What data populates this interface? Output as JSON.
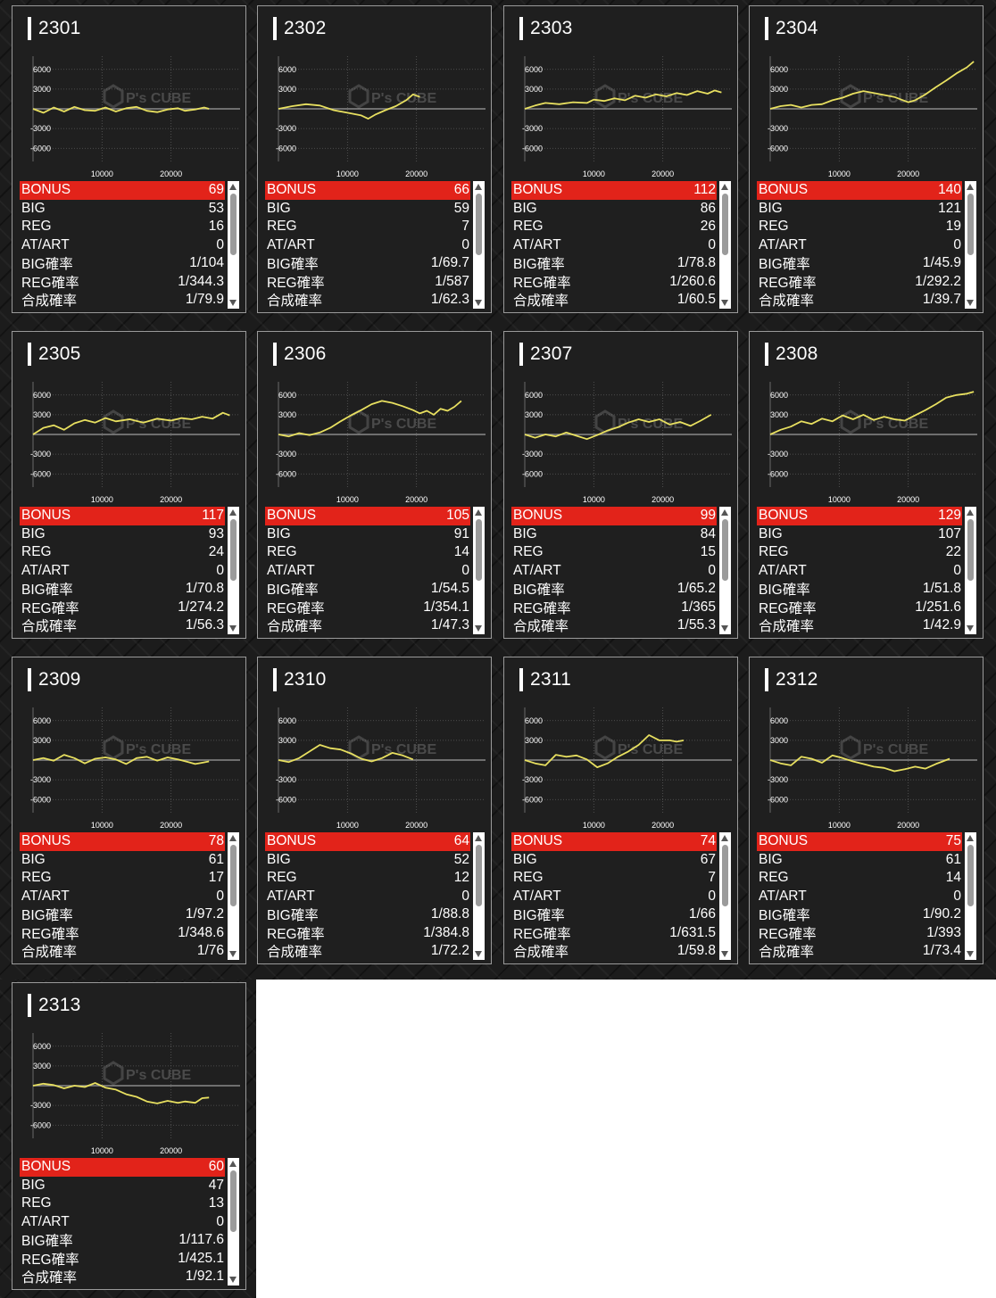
{
  "row_labels": [
    "BONUS",
    "BIG",
    "REG",
    "AT/ART",
    "BIG確率",
    "REG確率",
    "合成確率"
  ],
  "y_ticks": [
    "6000",
    "3000",
    "-3000",
    "-6000"
  ],
  "x_ticks": [
    "10000",
    "20000"
  ],
  "watermark": "P's CUBE",
  "colors": {
    "line": "#e8e060",
    "bonus_bg": "#e2231a",
    "panel_bg": "#1f1f1f"
  },
  "machines": [
    {
      "no": "2301",
      "stats": [
        "69",
        "53",
        "16",
        "0",
        "1/104",
        "1/344.3",
        "1/79.9"
      ],
      "series": [
        [
          0,
          0
        ],
        [
          1500,
          -600
        ],
        [
          3000,
          200
        ],
        [
          4500,
          -400
        ],
        [
          6000,
          300
        ],
        [
          7500,
          -200
        ],
        [
          9000,
          -300
        ],
        [
          10500,
          200
        ],
        [
          12000,
          -400
        ],
        [
          13500,
          100
        ],
        [
          15000,
          300
        ],
        [
          16500,
          -300
        ],
        [
          18000,
          -500
        ],
        [
          19500,
          -100
        ],
        [
          21000,
          100
        ],
        [
          22000,
          -300
        ],
        [
          23500,
          -100
        ],
        [
          24800,
          200
        ],
        [
          25500,
          0
        ]
      ]
    },
    {
      "no": "2302",
      "stats": [
        "66",
        "59",
        "7",
        "0",
        "1/69.7",
        "1/587",
        "1/62.3"
      ],
      "series": [
        [
          0,
          0
        ],
        [
          2000,
          400
        ],
        [
          4000,
          700
        ],
        [
          6000,
          500
        ],
        [
          8000,
          -200
        ],
        [
          10000,
          -600
        ],
        [
          12000,
          -1000
        ],
        [
          13000,
          -1500
        ],
        [
          14000,
          -900
        ],
        [
          15500,
          -200
        ],
        [
          17000,
          400
        ],
        [
          18500,
          1300
        ],
        [
          19500,
          2200
        ],
        [
          20500,
          1800
        ]
      ]
    },
    {
      "no": "2303",
      "stats": [
        "112",
        "86",
        "26",
        "0",
        "1/78.8",
        "1/260.6",
        "1/60.5"
      ],
      "series": [
        [
          0,
          0
        ],
        [
          1500,
          500
        ],
        [
          3000,
          900
        ],
        [
          5000,
          700
        ],
        [
          7000,
          1000
        ],
        [
          9000,
          900
        ],
        [
          10000,
          1400
        ],
        [
          11500,
          1200
        ],
        [
          13000,
          1600
        ],
        [
          14500,
          1300
        ],
        [
          16000,
          2000
        ],
        [
          17500,
          1700
        ],
        [
          19000,
          2200
        ],
        [
          20500,
          1900
        ],
        [
          22000,
          2400
        ],
        [
          23500,
          2100
        ],
        [
          25000,
          2700
        ],
        [
          26500,
          2300
        ],
        [
          27500,
          2800
        ],
        [
          28500,
          2500
        ]
      ]
    },
    {
      "no": "2304",
      "stats": [
        "140",
        "121",
        "19",
        "0",
        "1/45.9",
        "1/292.2",
        "1/39.7"
      ],
      "series": [
        [
          0,
          0
        ],
        [
          1500,
          400
        ],
        [
          3000,
          600
        ],
        [
          4500,
          200
        ],
        [
          6000,
          600
        ],
        [
          7500,
          700
        ],
        [
          9000,
          1300
        ],
        [
          10500,
          1700
        ],
        [
          12000,
          2300
        ],
        [
          13500,
          2700
        ],
        [
          15000,
          2400
        ],
        [
          16500,
          2100
        ],
        [
          18000,
          1800
        ],
        [
          19000,
          1400
        ],
        [
          20000,
          1000
        ],
        [
          21000,
          1300
        ],
        [
          22500,
          2200
        ],
        [
          24000,
          3300
        ],
        [
          25500,
          4300
        ],
        [
          27000,
          5400
        ],
        [
          28500,
          6300
        ],
        [
          29500,
          7200
        ]
      ]
    },
    {
      "no": "2305",
      "stats": [
        "117",
        "93",
        "24",
        "0",
        "1/70.8",
        "1/274.2",
        "1/56.3"
      ],
      "series": [
        [
          0,
          0
        ],
        [
          1500,
          1000
        ],
        [
          3000,
          1400
        ],
        [
          4500,
          700
        ],
        [
          6000,
          1700
        ],
        [
          7500,
          2200
        ],
        [
          9000,
          1800
        ],
        [
          10500,
          2500
        ],
        [
          12000,
          2000
        ],
        [
          14000,
          2300
        ],
        [
          16000,
          1800
        ],
        [
          18000,
          2400
        ],
        [
          20000,
          2100
        ],
        [
          21500,
          2500
        ],
        [
          23000,
          2300
        ],
        [
          24500,
          2700
        ],
        [
          26000,
          2400
        ],
        [
          27500,
          3300
        ],
        [
          28500,
          2900
        ]
      ]
    },
    {
      "no": "2306",
      "stats": [
        "105",
        "91",
        "14",
        "0",
        "1/54.5",
        "1/354.1",
        "1/47.3"
      ],
      "series": [
        [
          0,
          0
        ],
        [
          1500,
          -300
        ],
        [
          3000,
          200
        ],
        [
          4500,
          -100
        ],
        [
          6000,
          300
        ],
        [
          7500,
          1000
        ],
        [
          9000,
          2000
        ],
        [
          10500,
          2900
        ],
        [
          12000,
          3700
        ],
        [
          13500,
          4600
        ],
        [
          15000,
          5100
        ],
        [
          16500,
          4800
        ],
        [
          18000,
          4300
        ],
        [
          19500,
          3700
        ],
        [
          20500,
          3200
        ],
        [
          21500,
          3600
        ],
        [
          22500,
          3000
        ],
        [
          23500,
          3900
        ],
        [
          24500,
          3600
        ],
        [
          25500,
          4200
        ],
        [
          26500,
          5100
        ]
      ]
    },
    {
      "no": "2307",
      "stats": [
        "99",
        "84",
        "15",
        "0",
        "1/65.2",
        "1/365",
        "1/55.3"
      ],
      "series": [
        [
          0,
          0
        ],
        [
          1500,
          -500
        ],
        [
          3000,
          0
        ],
        [
          4500,
          -300
        ],
        [
          6000,
          300
        ],
        [
          7500,
          -200
        ],
        [
          9000,
          -700
        ],
        [
          10500,
          -100
        ],
        [
          12000,
          600
        ],
        [
          13500,
          1100
        ],
        [
          15000,
          1800
        ],
        [
          16500,
          2300
        ],
        [
          18000,
          1900
        ],
        [
          19500,
          2300
        ],
        [
          21000,
          1500
        ],
        [
          22500,
          1900
        ],
        [
          24000,
          1300
        ],
        [
          25500,
          2100
        ],
        [
          27000,
          3000
        ]
      ]
    },
    {
      "no": "2308",
      "stats": [
        "129",
        "107",
        "22",
        "0",
        "1/51.8",
        "1/251.6",
        "1/42.9"
      ],
      "series": [
        [
          0,
          0
        ],
        [
          1500,
          700
        ],
        [
          3000,
          1200
        ],
        [
          4500,
          2000
        ],
        [
          6000,
          1600
        ],
        [
          7500,
          2400
        ],
        [
          9000,
          2000
        ],
        [
          10500,
          2900
        ],
        [
          12000,
          2300
        ],
        [
          13500,
          3000
        ],
        [
          15000,
          2200
        ],
        [
          16500,
          2700
        ],
        [
          18000,
          2300
        ],
        [
          19500,
          2100
        ],
        [
          21000,
          2900
        ],
        [
          22500,
          3700
        ],
        [
          24000,
          4600
        ],
        [
          25500,
          5600
        ],
        [
          27000,
          6000
        ],
        [
          28500,
          6200
        ],
        [
          29500,
          6500
        ]
      ]
    },
    {
      "no": "2309",
      "stats": [
        "78",
        "61",
        "17",
        "0",
        "1/97.2",
        "1/348.6",
        "1/76"
      ],
      "series": [
        [
          0,
          0
        ],
        [
          1500,
          300
        ],
        [
          3000,
          -100
        ],
        [
          4500,
          800
        ],
        [
          6000,
          300
        ],
        [
          7500,
          -500
        ],
        [
          9000,
          200
        ],
        [
          10500,
          400
        ],
        [
          12000,
          100
        ],
        [
          13500,
          -600
        ],
        [
          15000,
          300
        ],
        [
          16500,
          500
        ],
        [
          18000,
          -100
        ],
        [
          19500,
          400
        ],
        [
          21000,
          100
        ],
        [
          22500,
          -300
        ],
        [
          23500,
          -600
        ],
        [
          24500,
          -400
        ],
        [
          25500,
          -200
        ]
      ]
    },
    {
      "no": "2310",
      "stats": [
        "64",
        "52",
        "12",
        "0",
        "1/88.8",
        "1/384.8",
        "1/72.2"
      ],
      "series": [
        [
          0,
          0
        ],
        [
          1500,
          -300
        ],
        [
          3000,
          300
        ],
        [
          4500,
          1300
        ],
        [
          6000,
          2300
        ],
        [
          7500,
          1800
        ],
        [
          9000,
          1600
        ],
        [
          10500,
          1000
        ],
        [
          12000,
          200
        ],
        [
          13500,
          -200
        ],
        [
          15000,
          300
        ],
        [
          16500,
          1100
        ],
        [
          18000,
          700
        ],
        [
          19500,
          100
        ]
      ]
    },
    {
      "no": "2311",
      "stats": [
        "74",
        "67",
        "7",
        "0",
        "1/66",
        "1/631.5",
        "1/59.8"
      ],
      "series": [
        [
          0,
          0
        ],
        [
          1500,
          -500
        ],
        [
          3000,
          -800
        ],
        [
          4500,
          800
        ],
        [
          6000,
          500
        ],
        [
          7500,
          700
        ],
        [
          9000,
          100
        ],
        [
          10500,
          -1100
        ],
        [
          12000,
          -500
        ],
        [
          13500,
          500
        ],
        [
          15000,
          1300
        ],
        [
          16500,
          2300
        ],
        [
          18000,
          3800
        ],
        [
          19500,
          3000
        ],
        [
          21000,
          3000
        ],
        [
          22000,
          2800
        ],
        [
          23000,
          3000
        ]
      ]
    },
    {
      "no": "2312",
      "stats": [
        "75",
        "61",
        "14",
        "0",
        "1/90.2",
        "1/393",
        "1/73.4"
      ],
      "series": [
        [
          0,
          0
        ],
        [
          1500,
          -500
        ],
        [
          3000,
          -800
        ],
        [
          4500,
          500
        ],
        [
          6000,
          200
        ],
        [
          7500,
          -400
        ],
        [
          9000,
          700
        ],
        [
          10500,
          300
        ],
        [
          12000,
          -200
        ],
        [
          13500,
          -600
        ],
        [
          15000,
          -1000
        ],
        [
          16500,
          -1200
        ],
        [
          18000,
          -1700
        ],
        [
          19500,
          -1400
        ],
        [
          21000,
          -1000
        ],
        [
          22500,
          -1300
        ],
        [
          24000,
          -600
        ],
        [
          25000,
          -200
        ],
        [
          26000,
          200
        ]
      ]
    },
    {
      "no": "2313",
      "stats": [
        "60",
        "47",
        "13",
        "0",
        "1/117.6",
        "1/425.1",
        "1/92.1"
      ],
      "series": [
        [
          0,
          0
        ],
        [
          1500,
          300
        ],
        [
          3000,
          100
        ],
        [
          4500,
          -400
        ],
        [
          6000,
          0
        ],
        [
          7500,
          -200
        ],
        [
          9000,
          400
        ],
        [
          10500,
          -300
        ],
        [
          12000,
          -600
        ],
        [
          13500,
          -1300
        ],
        [
          15000,
          -1700
        ],
        [
          16500,
          -2400
        ],
        [
          18000,
          -2700
        ],
        [
          19500,
          -2300
        ],
        [
          21000,
          -2600
        ],
        [
          22000,
          -2400
        ],
        [
          23500,
          -2600
        ],
        [
          24500,
          -1900
        ],
        [
          25500,
          -1800
        ]
      ]
    }
  ]
}
